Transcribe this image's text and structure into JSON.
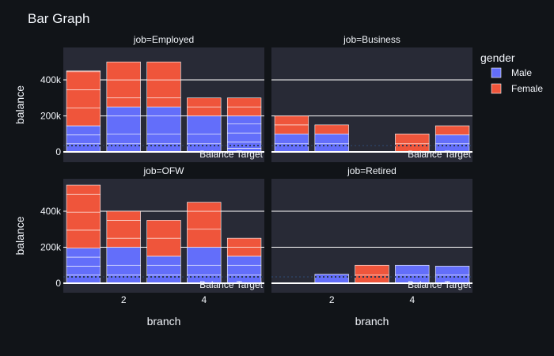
{
  "chart_data": {
    "type": "bar",
    "title": "Bar Graph",
    "xlabel": "branch",
    "ylabel": "balance",
    "ylim": [
      -20000,
      560000
    ],
    "yticks": [
      0,
      200000,
      400000
    ],
    "ytick_labels": [
      "0",
      "200k",
      "400k"
    ],
    "xticks": [
      2,
      4
    ],
    "xtick_labels": [
      "2",
      "4"
    ],
    "branches": [
      1,
      2,
      3,
      4,
      5
    ],
    "legend": {
      "title": "gender",
      "position": "right"
    },
    "series_colors": {
      "Male": "#636efa",
      "Female": "#ef553b"
    },
    "target": {
      "value": 35000,
      "label": "Balance Target"
    },
    "panels": [
      {
        "title": "job=Employed",
        "bars": [
          {
            "branch": 1,
            "male": [
              45000,
              50000,
              50000
            ],
            "female": [
              100000,
              100000,
              100000,
              5000
            ]
          },
          {
            "branch": 2,
            "male": [
              45000,
              55000,
              100000,
              50000
            ],
            "female": [
              50000,
              100000,
              100000
            ]
          },
          {
            "branch": 3,
            "male": [
              45000,
              55000,
              100000,
              50000
            ],
            "female": [
              50000,
              100000,
              100000
            ]
          },
          {
            "branch": 4,
            "male": [
              45000,
              55000,
              100000
            ],
            "female": [
              50000,
              50000
            ]
          },
          {
            "branch": 5,
            "male": [
              20000,
              35000,
              50000,
              50000,
              45000
            ],
            "female": [
              50000,
              50000
            ]
          }
        ]
      },
      {
        "title": "job=Business",
        "bars": [
          {
            "branch": 1,
            "male": [
              45000,
              55000
            ],
            "female": [
              50000,
              50000
            ]
          },
          {
            "branch": 2,
            "male": [
              45000,
              55000
            ],
            "female": [
              50000
            ]
          },
          {
            "branch": 4,
            "male": [],
            "female": [
              45000,
              55000
            ]
          },
          {
            "branch": 5,
            "male": [
              45000,
              50000
            ],
            "female": [
              50000
            ]
          }
        ]
      },
      {
        "title": "job=OFW",
        "bars": [
          {
            "branch": 1,
            "male": [
              45000,
              50000,
              50000,
              50000
            ],
            "female": [
              100000,
              100000,
              100000,
              50000
            ]
          },
          {
            "branch": 2,
            "male": [
              45000,
              55000,
              100000
            ],
            "female": [
              50000,
              100000,
              50000
            ]
          },
          {
            "branch": 3,
            "male": [
              45000,
              55000,
              50000
            ],
            "female": [
              100000,
              100000
            ]
          },
          {
            "branch": 4,
            "male": [
              45000,
              55000,
              100000
            ],
            "female": [
              100000,
              100000,
              50000
            ]
          },
          {
            "branch": 5,
            "male": [
              45000,
              55000,
              50000
            ],
            "female": [
              50000,
              50000
            ]
          }
        ]
      },
      {
        "title": "job=Retired",
        "bars": [
          {
            "branch": 2,
            "male": [
              50000
            ],
            "female": []
          },
          {
            "branch": 3,
            "male": [],
            "female": [
              45000,
              55000
            ]
          },
          {
            "branch": 4,
            "male": [
              45000,
              55000
            ],
            "female": []
          },
          {
            "branch": 5,
            "male": [
              45000,
              50000
            ],
            "female": []
          }
        ]
      }
    ]
  }
}
